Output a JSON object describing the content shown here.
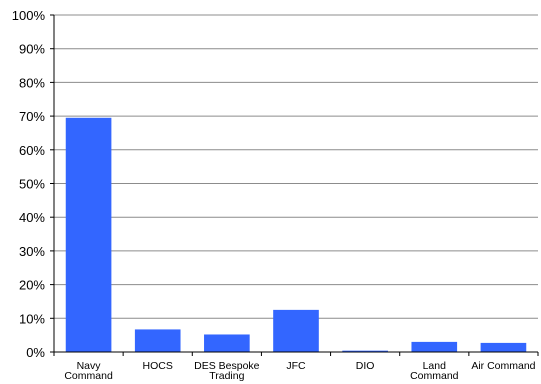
{
  "chart_data": {
    "type": "bar",
    "categories": [
      [
        "Navy",
        "Command"
      ],
      [
        "HOCS"
      ],
      [
        "DES Bespoke",
        "Trading"
      ],
      [
        "JFC"
      ],
      [
        "DIO"
      ],
      [
        "Land",
        "Command"
      ],
      [
        "Air Command"
      ]
    ],
    "values": [
      69.5,
      6.7,
      5.2,
      12.5,
      0.4,
      3.0,
      2.7
    ],
    "ylim": [
      0,
      100
    ],
    "yticks": [
      "0%",
      "10%",
      "20%",
      "30%",
      "40%",
      "50%",
      "60%",
      "70%",
      "80%",
      "90%",
      "100%"
    ],
    "grid": true,
    "legend": "none",
    "bar_color": "#3366FF",
    "title": "",
    "xlabel": "",
    "ylabel": ""
  }
}
